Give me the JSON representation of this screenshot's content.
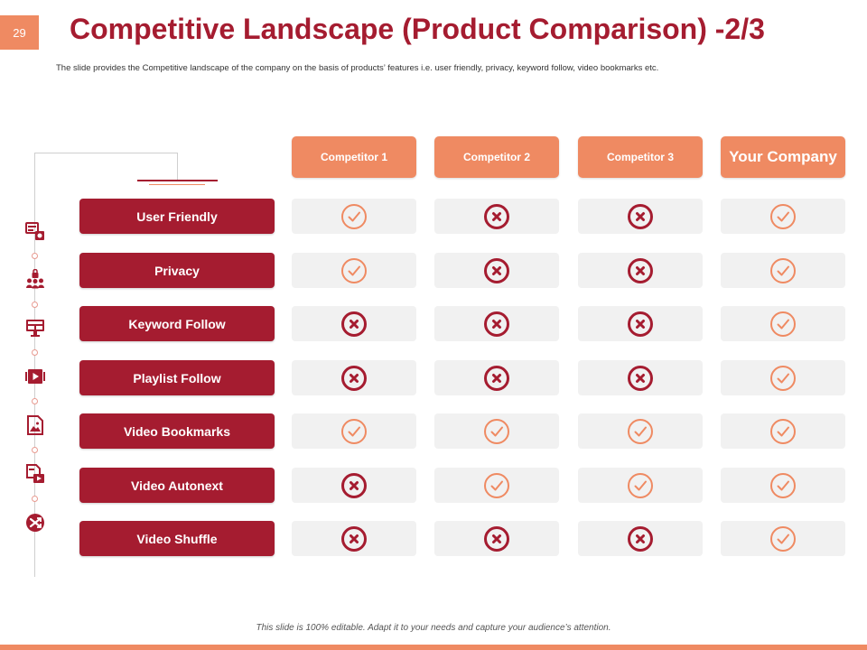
{
  "page_number": "29",
  "title": "Competitive Landscape (Product Comparison) -2/3",
  "subtitle": "The slide provides the Competitive landscape of the company on the basis of products’ features i.e. user friendly, privacy, keyword follow, video bookmarks etc.",
  "columns": [
    "Competitor 1",
    "Competitor 2",
    "Competitor 3",
    "Your Company"
  ],
  "rows": [
    {
      "feature": "User Friendly",
      "values": [
        "check",
        "cross",
        "cross",
        "check"
      ]
    },
    {
      "feature": "Privacy",
      "values": [
        "check",
        "cross",
        "cross",
        "check"
      ]
    },
    {
      "feature": "Keyword Follow",
      "values": [
        "cross",
        "cross",
        "cross",
        "check"
      ]
    },
    {
      "feature": "Playlist Follow",
      "values": [
        "cross",
        "cross",
        "cross",
        "check"
      ]
    },
    {
      "feature": "Video Bookmarks",
      "values": [
        "check",
        "check",
        "check",
        "check"
      ]
    },
    {
      "feature": "Video Autonext",
      "values": [
        "cross",
        "check",
        "check",
        "check"
      ]
    },
    {
      "feature": "Video Shuffle",
      "values": [
        "cross",
        "cross",
        "cross",
        "check"
      ]
    }
  ],
  "side_icons": [
    "monitor-settings-icon",
    "user-group-lock-icon",
    "web-monitor-icon",
    "video-play-icon",
    "image-file-icon",
    "video-file-icon",
    "shuffle-icon"
  ],
  "colors": {
    "accent": "#a51c30",
    "secondary": "#ef8a62",
    "check": "#ef8a62",
    "cross": "#a51c30",
    "cell": "#f1f1f1"
  },
  "footer": "This slide is 100% editable. Adapt it to your needs and capture your audience’s attention."
}
